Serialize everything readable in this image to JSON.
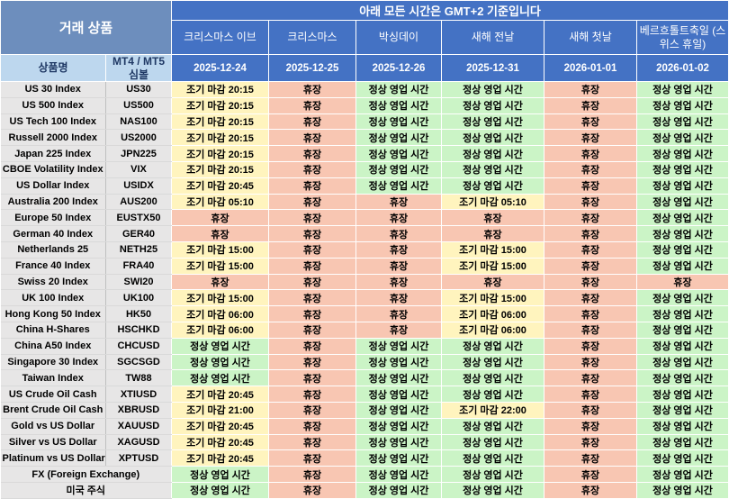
{
  "header": {
    "trade_products_label": "거래 상품",
    "timezone_note": "아래 모든 시간은 GMT+2 기준입니다",
    "product_name_label": "상품명",
    "symbol_label": "MT4 / MT5 심볼",
    "holidays": [
      {
        "name": "크리스마스 이브",
        "date": "2025-12-24"
      },
      {
        "name": "크리스마스",
        "date": "2025-12-25"
      },
      {
        "name": "박싱데이",
        "date": "2025-12-26"
      },
      {
        "name": "새해 전날",
        "date": "2025-12-31"
      },
      {
        "name": "새해 첫날",
        "date": "2026-01-01"
      },
      {
        "name": "베르흐톨트축일 (스위스 휴일)",
        "date": "2026-01-02"
      }
    ]
  },
  "status_labels": {
    "open": "정상 영업 시간",
    "closed": "휴장",
    "early_close_prefix": "조기 마감"
  },
  "colors": {
    "header_blue": "#4472C4",
    "corner_blue": "#6D8EBD",
    "light_blue": "#BDD7EE",
    "navy_text": "#1F3864",
    "product_gray": "#E7E6E6",
    "early_yellow": "#FFF4BE",
    "closed_salmon": "#F8C6B2",
    "open_green": "#CBF4C6"
  },
  "rows": [
    {
      "product": "US 30 Index",
      "symbol": "US30",
      "cells": [
        {
          "text": "조기 마감 20:15",
          "status": "early"
        },
        {
          "text": "휴장",
          "status": "closed"
        },
        {
          "text": "정상 영업 시간",
          "status": "open"
        },
        {
          "text": "정상 영업 시간",
          "status": "open"
        },
        {
          "text": "휴장",
          "status": "closed"
        },
        {
          "text": "정상 영업 시간",
          "status": "open"
        }
      ]
    },
    {
      "product": "US 500 Index",
      "symbol": "US500",
      "cells": [
        {
          "text": "조기 마감 20:15",
          "status": "early"
        },
        {
          "text": "휴장",
          "status": "closed"
        },
        {
          "text": "정상 영업 시간",
          "status": "open"
        },
        {
          "text": "정상 영업 시간",
          "status": "open"
        },
        {
          "text": "휴장",
          "status": "closed"
        },
        {
          "text": "정상 영업 시간",
          "status": "open"
        }
      ]
    },
    {
      "product": "US Tech 100 Index",
      "symbol": "NAS100",
      "cells": [
        {
          "text": "조기 마감 20:15",
          "status": "early"
        },
        {
          "text": "휴장",
          "status": "closed"
        },
        {
          "text": "정상 영업 시간",
          "status": "open"
        },
        {
          "text": "정상 영업 시간",
          "status": "open"
        },
        {
          "text": "휴장",
          "status": "closed"
        },
        {
          "text": "정상 영업 시간",
          "status": "open"
        }
      ]
    },
    {
      "product": "Russell 2000 Index",
      "symbol": "US2000",
      "cells": [
        {
          "text": "조기 마감 20:15",
          "status": "early"
        },
        {
          "text": "휴장",
          "status": "closed"
        },
        {
          "text": "정상 영업 시간",
          "status": "open"
        },
        {
          "text": "정상 영업 시간",
          "status": "open"
        },
        {
          "text": "휴장",
          "status": "closed"
        },
        {
          "text": "정상 영업 시간",
          "status": "open"
        }
      ]
    },
    {
      "product": "Japan 225 Index",
      "symbol": "JPN225",
      "cells": [
        {
          "text": "조기 마감 20:15",
          "status": "early"
        },
        {
          "text": "휴장",
          "status": "closed"
        },
        {
          "text": "정상 영업 시간",
          "status": "open"
        },
        {
          "text": "정상 영업 시간",
          "status": "open"
        },
        {
          "text": "휴장",
          "status": "closed"
        },
        {
          "text": "정상 영업 시간",
          "status": "open"
        }
      ]
    },
    {
      "product": "CBOE Volatility Index",
      "symbol": "VIX",
      "cells": [
        {
          "text": "조기 마감 20:15",
          "status": "early"
        },
        {
          "text": "휴장",
          "status": "closed"
        },
        {
          "text": "정상 영업 시간",
          "status": "open"
        },
        {
          "text": "정상 영업 시간",
          "status": "open"
        },
        {
          "text": "휴장",
          "status": "closed"
        },
        {
          "text": "정상 영업 시간",
          "status": "open"
        }
      ]
    },
    {
      "product": "US Dollar Index",
      "symbol": "USIDX",
      "cells": [
        {
          "text": "조기 마감 20:45",
          "status": "early"
        },
        {
          "text": "휴장",
          "status": "closed"
        },
        {
          "text": "정상 영업 시간",
          "status": "open"
        },
        {
          "text": "정상 영업 시간",
          "status": "open"
        },
        {
          "text": "휴장",
          "status": "closed"
        },
        {
          "text": "정상 영업 시간",
          "status": "open"
        }
      ]
    },
    {
      "product": "Australia 200 Index",
      "symbol": "AUS200",
      "cells": [
        {
          "text": "조기 마감 05:10",
          "status": "early"
        },
        {
          "text": "휴장",
          "status": "closed"
        },
        {
          "text": "휴장",
          "status": "closed"
        },
        {
          "text": "조기 마감 05:10",
          "status": "early"
        },
        {
          "text": "휴장",
          "status": "closed"
        },
        {
          "text": "정상 영업 시간",
          "status": "open"
        }
      ]
    },
    {
      "product": "Europe 50 Index",
      "symbol": "EUSTX50",
      "cells": [
        {
          "text": "휴장",
          "status": "closed"
        },
        {
          "text": "휴장",
          "status": "closed"
        },
        {
          "text": "휴장",
          "status": "closed"
        },
        {
          "text": "휴장",
          "status": "closed"
        },
        {
          "text": "휴장",
          "status": "closed"
        },
        {
          "text": "정상 영업 시간",
          "status": "open"
        }
      ]
    },
    {
      "product": "German 40 Index",
      "symbol": "GER40",
      "cells": [
        {
          "text": "휴장",
          "status": "closed"
        },
        {
          "text": "휴장",
          "status": "closed"
        },
        {
          "text": "휴장",
          "status": "closed"
        },
        {
          "text": "휴장",
          "status": "closed"
        },
        {
          "text": "휴장",
          "status": "closed"
        },
        {
          "text": "정상 영업 시간",
          "status": "open"
        }
      ]
    },
    {
      "product": "Netherlands 25",
      "symbol": "NETH25",
      "cells": [
        {
          "text": "조기 마감 15:00",
          "status": "early"
        },
        {
          "text": "휴장",
          "status": "closed"
        },
        {
          "text": "휴장",
          "status": "closed"
        },
        {
          "text": "조기 마감 15:00",
          "status": "early"
        },
        {
          "text": "휴장",
          "status": "closed"
        },
        {
          "text": "정상 영업 시간",
          "status": "open"
        }
      ]
    },
    {
      "product": "France 40 Index",
      "symbol": "FRA40",
      "cells": [
        {
          "text": "조기 마감 15:00",
          "status": "early"
        },
        {
          "text": "휴장",
          "status": "closed"
        },
        {
          "text": "휴장",
          "status": "closed"
        },
        {
          "text": "조기 마감 15:00",
          "status": "early"
        },
        {
          "text": "휴장",
          "status": "closed"
        },
        {
          "text": "정상 영업 시간",
          "status": "open"
        }
      ]
    },
    {
      "product": "Swiss 20 Index",
      "symbol": "SWI20",
      "cells": [
        {
          "text": "휴장",
          "status": "closed"
        },
        {
          "text": "휴장",
          "status": "closed"
        },
        {
          "text": "휴장",
          "status": "closed"
        },
        {
          "text": "휴장",
          "status": "closed"
        },
        {
          "text": "휴장",
          "status": "closed"
        },
        {
          "text": "휴장",
          "status": "closed"
        }
      ]
    },
    {
      "product": "UK 100 Index",
      "symbol": "UK100",
      "cells": [
        {
          "text": "조기 마감 15:00",
          "status": "early"
        },
        {
          "text": "휴장",
          "status": "closed"
        },
        {
          "text": "휴장",
          "status": "closed"
        },
        {
          "text": "조기 마감 15:00",
          "status": "early"
        },
        {
          "text": "휴장",
          "status": "closed"
        },
        {
          "text": "정상 영업 시간",
          "status": "open"
        }
      ]
    },
    {
      "product": "Hong Kong 50 Index",
      "symbol": "HK50",
      "cells": [
        {
          "text": "조기 마감 06:00",
          "status": "early"
        },
        {
          "text": "휴장",
          "status": "closed"
        },
        {
          "text": "휴장",
          "status": "closed"
        },
        {
          "text": "조기 마감 06:00",
          "status": "early"
        },
        {
          "text": "휴장",
          "status": "closed"
        },
        {
          "text": "정상 영업 시간",
          "status": "open"
        }
      ]
    },
    {
      "product": "China H-Shares",
      "symbol": "HSCHKD",
      "cells": [
        {
          "text": "조기 마감 06:00",
          "status": "early"
        },
        {
          "text": "휴장",
          "status": "closed"
        },
        {
          "text": "휴장",
          "status": "closed"
        },
        {
          "text": "조기 마감 06:00",
          "status": "early"
        },
        {
          "text": "휴장",
          "status": "closed"
        },
        {
          "text": "정상 영업 시간",
          "status": "open"
        }
      ]
    },
    {
      "product": "China A50 Index",
      "symbol": "CHCUSD",
      "cells": [
        {
          "text": "정상 영업 시간",
          "status": "open"
        },
        {
          "text": "휴장",
          "status": "closed"
        },
        {
          "text": "정상 영업 시간",
          "status": "open"
        },
        {
          "text": "정상 영업 시간",
          "status": "open"
        },
        {
          "text": "휴장",
          "status": "closed"
        },
        {
          "text": "정상 영업 시간",
          "status": "open"
        }
      ]
    },
    {
      "product": "Singapore 30 Index",
      "symbol": "SGCSGD",
      "cells": [
        {
          "text": "정상 영업 시간",
          "status": "open"
        },
        {
          "text": "휴장",
          "status": "closed"
        },
        {
          "text": "정상 영업 시간",
          "status": "open"
        },
        {
          "text": "정상 영업 시간",
          "status": "open"
        },
        {
          "text": "휴장",
          "status": "closed"
        },
        {
          "text": "정상 영업 시간",
          "status": "open"
        }
      ]
    },
    {
      "product": "Taiwan Index",
      "symbol": "TW88",
      "cells": [
        {
          "text": "정상 영업 시간",
          "status": "open"
        },
        {
          "text": "휴장",
          "status": "closed"
        },
        {
          "text": "정상 영업 시간",
          "status": "open"
        },
        {
          "text": "정상 영업 시간",
          "status": "open"
        },
        {
          "text": "휴장",
          "status": "closed"
        },
        {
          "text": "정상 영업 시간",
          "status": "open"
        }
      ]
    },
    {
      "product": "US Crude Oil Cash",
      "symbol": "XTIUSD",
      "cells": [
        {
          "text": "조기 마감 20:45",
          "status": "early"
        },
        {
          "text": "휴장",
          "status": "closed"
        },
        {
          "text": "정상 영업 시간",
          "status": "open"
        },
        {
          "text": "정상 영업 시간",
          "status": "open"
        },
        {
          "text": "휴장",
          "status": "closed"
        },
        {
          "text": "정상 영업 시간",
          "status": "open"
        }
      ]
    },
    {
      "product": "Brent Crude Oil Cash",
      "symbol": "XBRUSD",
      "cells": [
        {
          "text": "조기 마감 21:00",
          "status": "early"
        },
        {
          "text": "휴장",
          "status": "closed"
        },
        {
          "text": "정상 영업 시간",
          "status": "open"
        },
        {
          "text": "조기 마감 22:00",
          "status": "early"
        },
        {
          "text": "휴장",
          "status": "closed"
        },
        {
          "text": "정상 영업 시간",
          "status": "open"
        }
      ]
    },
    {
      "product": "Gold vs US Dollar",
      "symbol": "XAUUSD",
      "cells": [
        {
          "text": "조기 마감 20:45",
          "status": "early"
        },
        {
          "text": "휴장",
          "status": "closed"
        },
        {
          "text": "정상 영업 시간",
          "status": "open"
        },
        {
          "text": "정상 영업 시간",
          "status": "open"
        },
        {
          "text": "휴장",
          "status": "closed"
        },
        {
          "text": "정상 영업 시간",
          "status": "open"
        }
      ]
    },
    {
      "product": "Silver vs US Dollar",
      "symbol": "XAGUSD",
      "cells": [
        {
          "text": "조기 마감 20:45",
          "status": "early"
        },
        {
          "text": "휴장",
          "status": "closed"
        },
        {
          "text": "정상 영업 시간",
          "status": "open"
        },
        {
          "text": "정상 영업 시간",
          "status": "open"
        },
        {
          "text": "휴장",
          "status": "closed"
        },
        {
          "text": "정상 영업 시간",
          "status": "open"
        }
      ]
    },
    {
      "product": "Platinum vs US Dollar",
      "symbol": "XPTUSD",
      "cells": [
        {
          "text": "조기 마감 20:45",
          "status": "early"
        },
        {
          "text": "휴장",
          "status": "closed"
        },
        {
          "text": "정상 영업 시간",
          "status": "open"
        },
        {
          "text": "정상 영업 시간",
          "status": "open"
        },
        {
          "text": "휴장",
          "status": "closed"
        },
        {
          "text": "정상 영업 시간",
          "status": "open"
        }
      ]
    },
    {
      "product": "FX (Foreign Exchange)",
      "symbol": null,
      "span": true,
      "cells": [
        {
          "text": "정상 영업 시간",
          "status": "open"
        },
        {
          "text": "휴장",
          "status": "closed"
        },
        {
          "text": "정상 영업 시간",
          "status": "open"
        },
        {
          "text": "정상 영업 시간",
          "status": "open"
        },
        {
          "text": "휴장",
          "status": "closed"
        },
        {
          "text": "정상 영업 시간",
          "status": "open"
        }
      ]
    },
    {
      "product": "미국 주식",
      "symbol": null,
      "span": true,
      "cells": [
        {
          "text": "정상 영업 시간",
          "status": "open"
        },
        {
          "text": "휴장",
          "status": "closed"
        },
        {
          "text": "정상 영업 시간",
          "status": "open"
        },
        {
          "text": "정상 영업 시간",
          "status": "open"
        },
        {
          "text": "휴장",
          "status": "closed"
        },
        {
          "text": "정상 영업 시간",
          "status": "open"
        }
      ]
    }
  ]
}
